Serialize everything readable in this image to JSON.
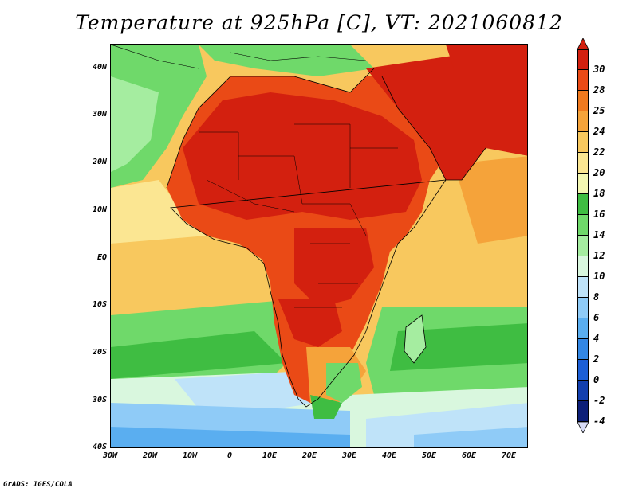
{
  "title": "Temperature at 925hPa [C], VT: 2021060812",
  "credit": "GrADS: IGES/COLA",
  "lat_labels": [
    "40N",
    "30N",
    "20N",
    "10N",
    "EQ",
    "10S",
    "20S",
    "30S",
    "40S"
  ],
  "lon_labels": [
    "30W",
    "20W",
    "10W",
    "0",
    "10E",
    "20E",
    "30E",
    "40E",
    "50E",
    "60E",
    "70E"
  ],
  "colorbar": {
    "labels": [
      "30",
      "28",
      "25",
      "24",
      "22",
      "20",
      "18",
      "16",
      "14",
      "12",
      "10",
      "8",
      "6",
      "4",
      "2",
      "0",
      "-2",
      "-4"
    ],
    "colors": [
      "#d3200f",
      "#ea4a16",
      "#f07a1f",
      "#f5a33a",
      "#f8c85e",
      "#fbe692",
      "#f3f7b2",
      "#3fbd42",
      "#6fd96a",
      "#a5eda0",
      "#d9f7de",
      "#bfe3f9",
      "#8fcbf7",
      "#5aaef0",
      "#3387e4",
      "#1c5fd6",
      "#133fae",
      "#0d1f78"
    ],
    "top_color": "#d3200f",
    "bottom_color": "#d8dcf7"
  }
}
